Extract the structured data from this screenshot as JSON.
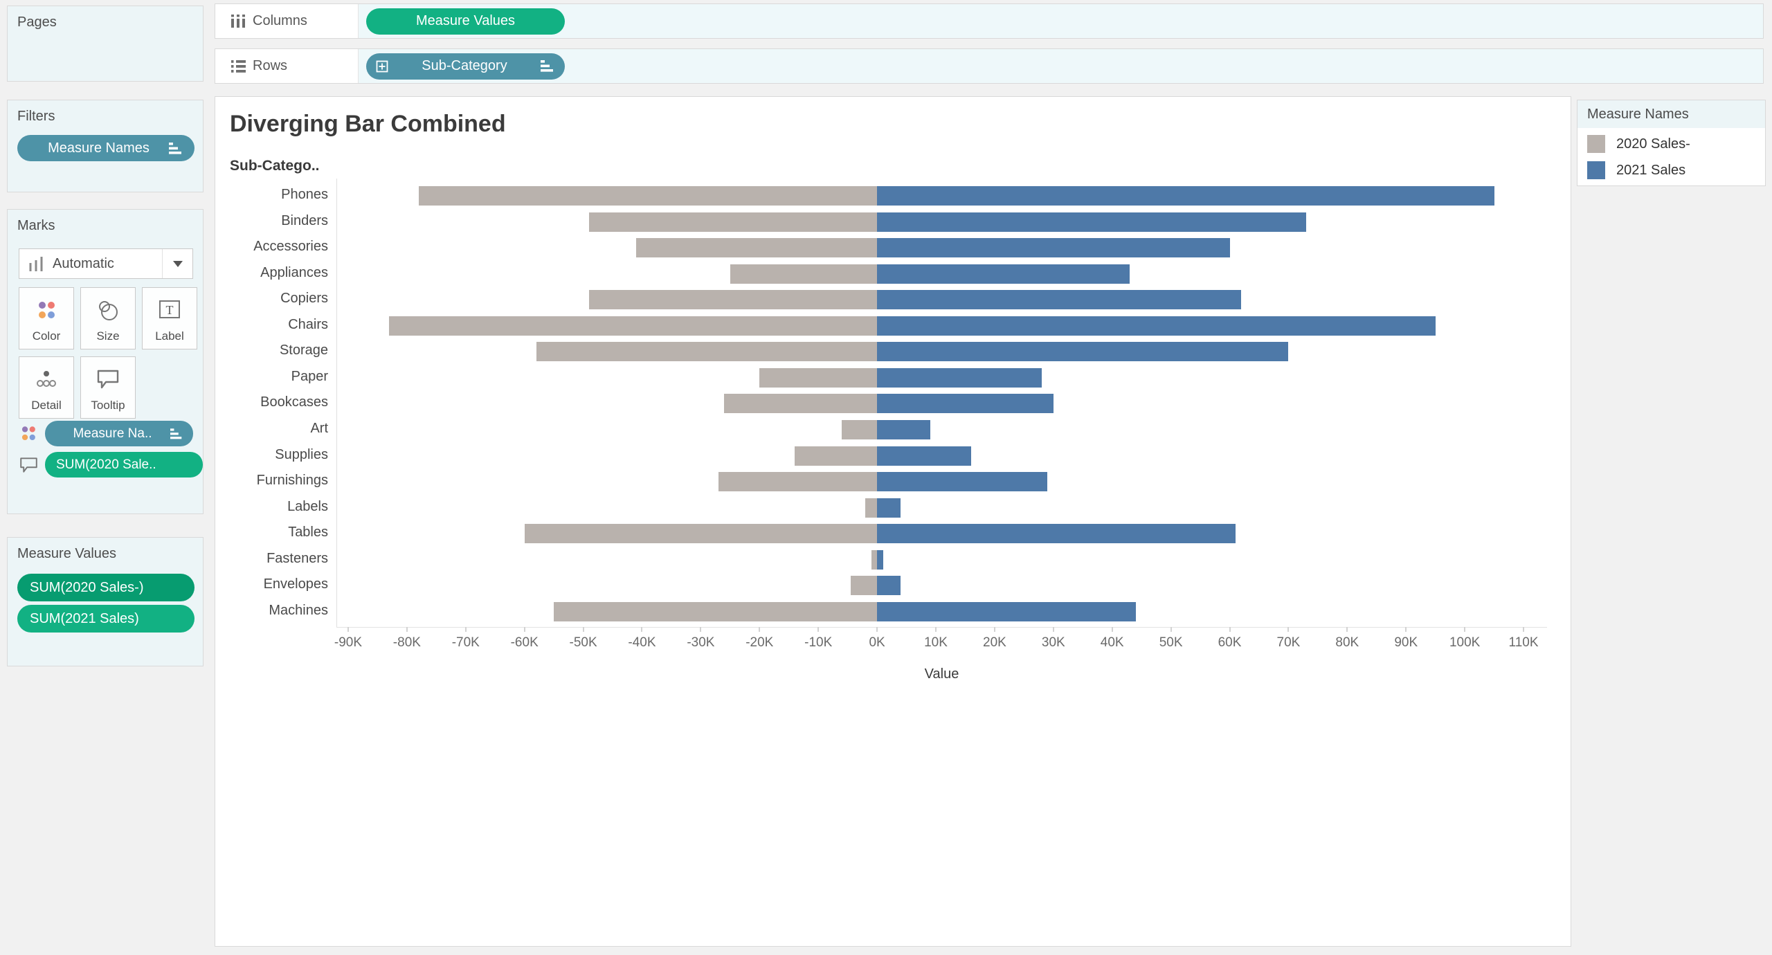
{
  "shelves": {
    "columns": {
      "label": "Columns",
      "pill": "Measure Values"
    },
    "rows": {
      "label": "Rows",
      "pill": "Sub-Category"
    }
  },
  "panels": {
    "pages": {
      "title": "Pages"
    },
    "filters": {
      "title": "Filters",
      "pill": "Measure Names"
    },
    "marks": {
      "title": "Marks",
      "mark_type": "Automatic",
      "buttons": [
        {
          "label": "Color"
        },
        {
          "label": "Size"
        },
        {
          "label": "Label"
        },
        {
          "label": "Detail"
        },
        {
          "label": "Tooltip"
        }
      ],
      "pills": [
        {
          "label": "Measure Na..",
          "shelf": "color"
        },
        {
          "label": "SUM(2020 Sale..",
          "shelf": "tooltip"
        }
      ]
    },
    "measure_values": {
      "title": "Measure Values",
      "pills": [
        {
          "label": "SUM(2020 Sales-)"
        },
        {
          "label": "SUM(2021 Sales)"
        }
      ]
    }
  },
  "legend": {
    "title": "Measure Names",
    "items": [
      {
        "label": "2020 Sales-",
        "color": "#b9b2ad"
      },
      {
        "label": "2021 Sales",
        "color": "#4e79a8"
      }
    ]
  },
  "chart_data": {
    "type": "bar",
    "variant": "diverging-horizontal",
    "title": "Diverging Bar Combined",
    "row_header": "Sub-Catego..",
    "xlabel": "Value",
    "categories": [
      "Phones",
      "Binders",
      "Accessories",
      "Appliances",
      "Copiers",
      "Chairs",
      "Storage",
      "Paper",
      "Bookcases",
      "Art",
      "Supplies",
      "Furnishings",
      "Labels",
      "Tables",
      "Fasteners",
      "Envelopes",
      "Machines"
    ],
    "series": [
      {
        "name": "2020 Sales-",
        "color": "#b9b2ad",
        "values": [
          -78000,
          -49000,
          -41000,
          -25000,
          -49000,
          -83000,
          -58000,
          -20000,
          -26000,
          -6000,
          -14000,
          -27000,
          -2000,
          -60000,
          -1000,
          -4500,
          -55000
        ]
      },
      {
        "name": "2021 Sales",
        "color": "#4e79a8",
        "values": [
          105000,
          73000,
          60000,
          43000,
          62000,
          95000,
          70000,
          28000,
          30000,
          9000,
          16000,
          29000,
          4000,
          61000,
          1000,
          4000,
          44000
        ]
      }
    ],
    "xlim": [
      -92000,
      114000
    ],
    "xtick_labels": [
      "-90K",
      "-80K",
      "-70K",
      "-60K",
      "-50K",
      "-40K",
      "-30K",
      "-20K",
      "-10K",
      "0K",
      "10K",
      "20K",
      "30K",
      "40K",
      "50K",
      "60K",
      "70K",
      "80K",
      "90K",
      "100K",
      "110K"
    ],
    "grid": false,
    "legend_position": "top-right"
  },
  "colors": {
    "pill_blue": "#4e93a7",
    "pill_green": "#12b183",
    "pill_green_dark": "#079c70",
    "bar_gray": "#b9b2ad",
    "bar_blue": "#4e79a8",
    "panel_bg": "#ecf5f7",
    "shelf_body_bg": "#eef8fa"
  }
}
